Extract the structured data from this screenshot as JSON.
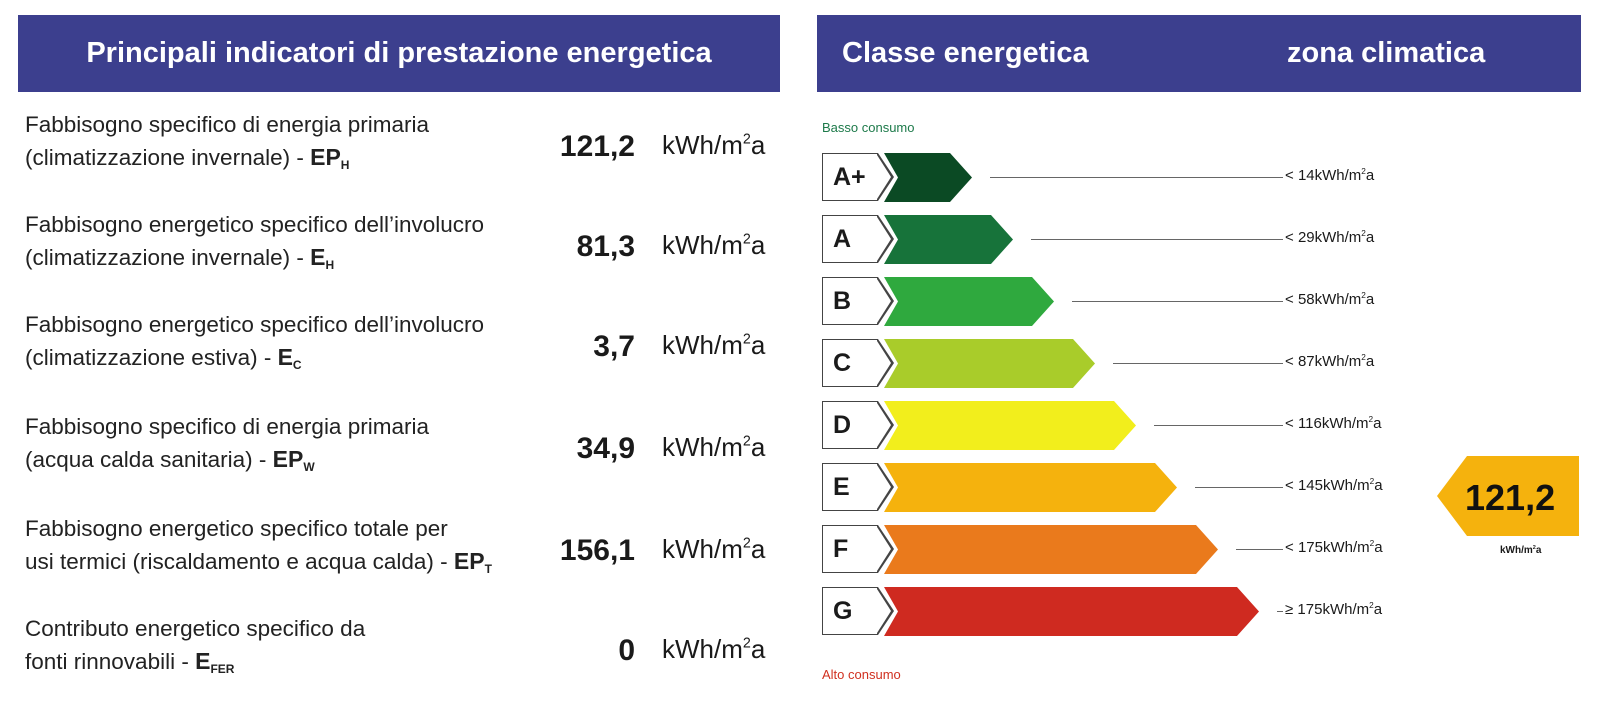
{
  "left_panel": {
    "title": "Principali indicatori di prestazione energetica",
    "unit_base": "kWh/m",
    "unit_exp": "2",
    "unit_tail": "a",
    "rows": [
      {
        "line1": "Fabbisogno specifico di energia primaria",
        "line2": "(climatizzazione invernale) - ",
        "symbol": "EP",
        "sub": "H",
        "value": "121,2"
      },
      {
        "line1": "Fabbisogno energetico specifico dell’involucro",
        "line2": "(climatizzazione invernale) - ",
        "symbol": "E",
        "sub": "H",
        "value": "81,3"
      },
      {
        "line1": "Fabbisogno energetico specifico dell’involucro",
        "line2": "(climatizzazione estiva) - ",
        "symbol": "E",
        "sub": "C",
        "value": "3,7"
      },
      {
        "line1": "Fabbisogno specifico di energia primaria",
        "line2": "(acqua calda sanitaria) - ",
        "symbol": "EP",
        "sub": "W",
        "value": "34,9"
      },
      {
        "line1": "Fabbisogno energetico specifico totale per",
        "line2": "usi termici (riscaldamento e acqua calda) - ",
        "symbol": "EP",
        "sub": "T",
        "value": "156,1"
      },
      {
        "line1": "Contributo energetico specifico da",
        "line2": "fonti rinnovabili - ",
        "symbol": "E",
        "sub": "FER",
        "value": "0"
      }
    ]
  },
  "right_panel": {
    "title": "Classe energetica",
    "zone_title": "zona climatica",
    "low_label": "Basso consumo",
    "high_label": "Alto consumo",
    "scale_unit_base": "kWh/m",
    "scale_unit_exp": "2",
    "scale_unit_tail": "a",
    "classes": [
      {
        "label": "A+",
        "op": "<",
        "threshold": "14",
        "color": "#0b4a24"
      },
      {
        "label": "A",
        "op": "<",
        "threshold": "29",
        "color": "#17733a"
      },
      {
        "label": "B",
        "op": "<",
        "threshold": "58",
        "color": "#2fa93e"
      },
      {
        "label": "C",
        "op": "<",
        "threshold": "87",
        "color": "#a9cc2a"
      },
      {
        "label": "D",
        "op": "<",
        "threshold": "116",
        "color": "#f2ee1c"
      },
      {
        "label": "E",
        "op": "<",
        "threshold": "145",
        "color": "#f5b20d"
      },
      {
        "label": "F",
        "op": "<",
        "threshold": "175",
        "color": "#ea7a1c"
      },
      {
        "label": "G",
        "op": "≥",
        "threshold": "175",
        "color": "#cf2a20"
      }
    ],
    "current": {
      "value": "121,2",
      "class": "E",
      "color": "#f5b20d",
      "unit_base": "kWh/m",
      "unit_exp": "2",
      "unit_tail": "a"
    }
  }
}
